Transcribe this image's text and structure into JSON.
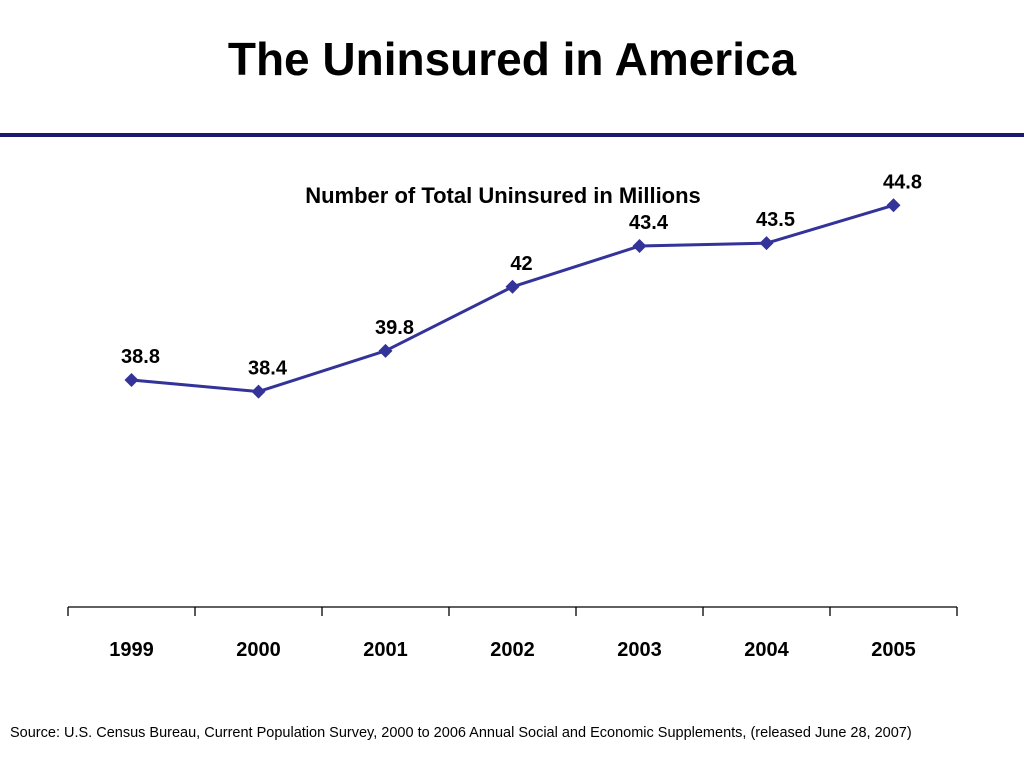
{
  "slide": {
    "title": "The Uninsured in America",
    "rule_color": "#1a1a6e",
    "source": "Source: U.S. Census Bureau, Current Population Survey, 2000 to 2006 Annual Social and Economic Supplements, (released June 28, 2007)"
  },
  "chart_data": {
    "type": "line",
    "title": "Number of Total Uninsured in Millions",
    "xlabel": "",
    "ylabel": "",
    "categories": [
      "1999",
      "2000",
      "2001",
      "2002",
      "2003",
      "2004",
      "2005"
    ],
    "series": [
      {
        "values": [
          38.8,
          38.4,
          39.8,
          42,
          43.4,
          43.5,
          44.8
        ],
        "labels": [
          "38.8",
          "38.4",
          "39.8",
          "42",
          "43.4",
          "43.5",
          "44.8"
        ],
        "color": "#333399",
        "marker": "diamond"
      }
    ],
    "ylim": [
      31,
      46.7
    ],
    "grid": false,
    "legend": "none",
    "show_y_axis": false,
    "data_labels": true
  }
}
